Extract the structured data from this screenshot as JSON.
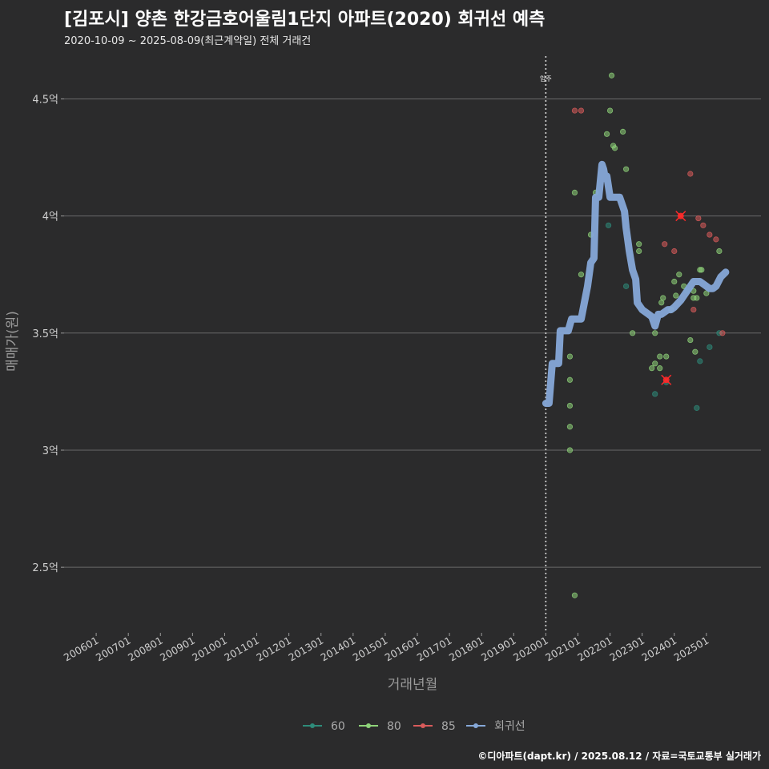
{
  "header": {
    "title": "[김포시] 양촌 한강금호어울림1단지 아파트(2020) 회귀선 예측",
    "subtitle": "2020-10-09 ~ 2025-08-09(최근계약일) 전체 거래건"
  },
  "footer": {
    "credit": "©디아파트(dapt.kr) / 2025.08.12 / 자료=국토교통부 실거래가"
  },
  "chart_data": {
    "type": "scatter",
    "xlabel": "거래년월",
    "ylabel": "매매가(원)",
    "x_ticks": [
      "200601",
      "200701",
      "200801",
      "200901",
      "201001",
      "201101",
      "201201",
      "201301",
      "201401",
      "201501",
      "201601",
      "201701",
      "201801",
      "201901",
      "202001",
      "202101",
      "202201",
      "202301",
      "202401",
      "202501"
    ],
    "y_ticks": [
      {
        "value": 2.5,
        "label": "2.5억"
      },
      {
        "value": 3,
        "label": "3억"
      },
      {
        "value": 3.5,
        "label": "3.5억"
      },
      {
        "value": 4,
        "label": "4억"
      },
      {
        "value": 4.5,
        "label": "4.5억"
      }
    ],
    "ylim": [
      2.22,
      4.7
    ],
    "xlim": [
      2005.0,
      2026.7
    ],
    "vline": {
      "x": 2020.0,
      "label": "입주"
    },
    "colors": {
      "60": "#2e8b7a",
      "80": "#8fd47a",
      "85": "#d95b5b",
      "regression": "#86a8d8",
      "highlight": "#ff2a2a"
    },
    "legend": [
      {
        "key": "60",
        "label": "60"
      },
      {
        "key": "80",
        "label": "80"
      },
      {
        "key": "85",
        "label": "85"
      },
      {
        "key": "regression",
        "label": "회귀선"
      }
    ],
    "series": [
      {
        "key": "60",
        "points": [
          [
            2021.95,
            3.96
          ],
          [
            2022.5,
            3.7
          ],
          [
            2023.4,
            3.24
          ],
          [
            2023.75,
            3.29
          ],
          [
            2024.4,
            3.68
          ],
          [
            2024.7,
            3.18
          ],
          [
            2024.8,
            3.38
          ],
          [
            2025.1,
            3.44
          ],
          [
            2025.4,
            3.5
          ]
        ]
      },
      {
        "key": "80",
        "points": [
          [
            2020.75,
            3.0
          ],
          [
            2020.75,
            3.1
          ],
          [
            2020.75,
            3.19
          ],
          [
            2020.75,
            3.3
          ],
          [
            2020.75,
            3.4
          ],
          [
            2020.9,
            2.38
          ],
          [
            2020.9,
            4.1
          ],
          [
            2021.1,
            3.75
          ],
          [
            2021.4,
            3.92
          ],
          [
            2021.55,
            4.1
          ],
          [
            2021.9,
            4.35
          ],
          [
            2022.0,
            4.45
          ],
          [
            2022.05,
            4.6
          ],
          [
            2022.1,
            4.3
          ],
          [
            2022.15,
            4.29
          ],
          [
            2022.4,
            4.36
          ],
          [
            2022.5,
            4.2
          ],
          [
            2022.7,
            3.5
          ],
          [
            2022.9,
            3.88
          ],
          [
            2022.9,
            3.85
          ],
          [
            2023.3,
            3.35
          ],
          [
            2023.4,
            3.37
          ],
          [
            2023.4,
            3.5
          ],
          [
            2023.55,
            3.35
          ],
          [
            2023.55,
            3.4
          ],
          [
            2023.6,
            3.63
          ],
          [
            2023.65,
            3.65
          ],
          [
            2023.75,
            3.4
          ],
          [
            2023.9,
            3.6
          ],
          [
            2024.0,
            3.72
          ],
          [
            2024.05,
            3.66
          ],
          [
            2024.15,
            3.75
          ],
          [
            2024.3,
            3.7
          ],
          [
            2024.5,
            3.47
          ],
          [
            2024.6,
            3.65
          ],
          [
            2024.6,
            3.68
          ],
          [
            2024.65,
            3.42
          ],
          [
            2024.7,
            3.65
          ],
          [
            2024.8,
            3.77
          ],
          [
            2024.85,
            3.77
          ],
          [
            2025.0,
            3.67
          ],
          [
            2025.4,
            3.85
          ]
        ]
      },
      {
        "key": "85",
        "points": [
          [
            2020.9,
            4.45
          ],
          [
            2021.1,
            4.45
          ],
          [
            2023.7,
            3.88
          ],
          [
            2024.0,
            3.85
          ],
          [
            2024.5,
            4.18
          ],
          [
            2024.6,
            3.6
          ],
          [
            2024.75,
            3.99
          ],
          [
            2024.9,
            3.96
          ],
          [
            2025.1,
            3.92
          ],
          [
            2025.3,
            3.9
          ],
          [
            2025.5,
            3.5
          ]
        ]
      }
    ],
    "highlights": [
      [
        2024.2,
        4.0
      ],
      [
        2023.75,
        3.3
      ]
    ],
    "regression": [
      [
        2020.0,
        3.2
      ],
      [
        2020.1,
        3.2
      ],
      [
        2020.2,
        3.37
      ],
      [
        2020.4,
        3.37
      ],
      [
        2020.45,
        3.51
      ],
      [
        2020.7,
        3.51
      ],
      [
        2020.8,
        3.56
      ],
      [
        2021.1,
        3.56
      ],
      [
        2021.3,
        3.7
      ],
      [
        2021.4,
        3.8
      ],
      [
        2021.5,
        3.82
      ],
      [
        2021.55,
        4.08
      ],
      [
        2021.65,
        4.08
      ],
      [
        2021.75,
        4.22
      ],
      [
        2021.8,
        4.2
      ],
      [
        2021.85,
        4.16
      ],
      [
        2021.9,
        4.17
      ],
      [
        2022.0,
        4.08
      ],
      [
        2022.3,
        4.08
      ],
      [
        2022.45,
        4.02
      ],
      [
        2022.5,
        3.95
      ],
      [
        2022.6,
        3.85
      ],
      [
        2022.7,
        3.77
      ],
      [
        2022.8,
        3.73
      ],
      [
        2022.85,
        3.63
      ],
      [
        2023.0,
        3.6
      ],
      [
        2023.1,
        3.59
      ],
      [
        2023.2,
        3.58
      ],
      [
        2023.3,
        3.57
      ],
      [
        2023.4,
        3.53
      ],
      [
        2023.5,
        3.58
      ],
      [
        2023.6,
        3.58
      ],
      [
        2023.8,
        3.6
      ],
      [
        2023.9,
        3.6
      ],
      [
        2024.0,
        3.61
      ],
      [
        2024.2,
        3.64
      ],
      [
        2024.4,
        3.68
      ],
      [
        2024.6,
        3.72
      ],
      [
        2024.8,
        3.72
      ],
      [
        2024.9,
        3.71
      ],
      [
        2025.1,
        3.69
      ],
      [
        2025.2,
        3.69
      ],
      [
        2025.3,
        3.7
      ],
      [
        2025.45,
        3.74
      ],
      [
        2025.6,
        3.76
      ]
    ]
  }
}
